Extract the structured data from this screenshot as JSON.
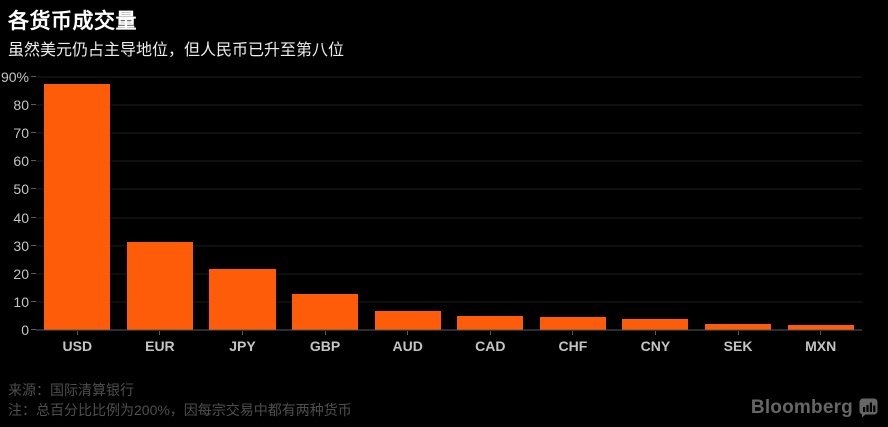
{
  "header": {
    "title": "各货币成交量",
    "subtitle": "虽然美元仍占主导地位，但人民币已升至第八位"
  },
  "chart_data": {
    "type": "bar",
    "title": "各货币成交量",
    "subtitle": "虽然美元仍占主导地位，但人民币已升至第八位",
    "categories": [
      "USD",
      "EUR",
      "JPY",
      "GBP",
      "AUD",
      "CAD",
      "CHF",
      "CNY",
      "SEK",
      "MXN"
    ],
    "values": [
      87.6,
      31.4,
      21.6,
      12.8,
      6.9,
      5.1,
      4.8,
      4.0,
      2.2,
      1.9
    ],
    "xlabel": "",
    "ylabel": "",
    "ylim": [
      0,
      90
    ],
    "ytick_interval": 10,
    "ytick_labels": [
      "0",
      "10",
      "20",
      "30",
      "40",
      "50",
      "60",
      "70",
      "80",
      "90%"
    ],
    "grid": true,
    "legend": false,
    "unit": "%"
  },
  "footer": {
    "source": "来源：国际清算银行",
    "note": "注：总百分比比例为200%，因每宗交易中都有两种货币",
    "brand": "Bloomberg"
  },
  "icons": {
    "brand_icon": "bar-chart-bubble-icon"
  },
  "colors": {
    "background": "#000000",
    "bar": "#ff5c0a",
    "grid": "#1e1e1e",
    "axis": "#5a5a5a",
    "axis_label": "#c4c4c4",
    "title": "#ffffff",
    "subtitle": "#ededed",
    "footer_text": "#4e4e4e",
    "brand": "#666666"
  }
}
